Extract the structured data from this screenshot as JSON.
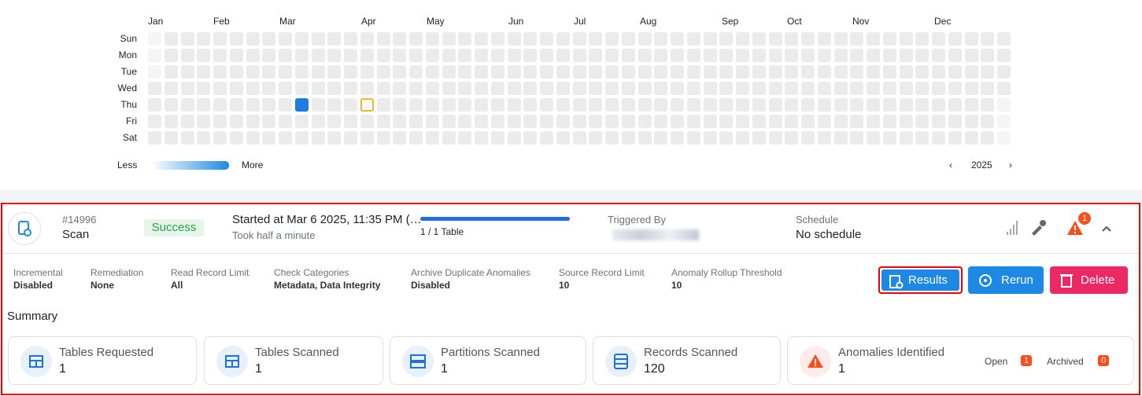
{
  "calendar": {
    "months": [
      "Jan",
      "Feb",
      "Mar",
      "Apr",
      "May",
      "Jun",
      "Jul",
      "Aug",
      "Sep",
      "Oct",
      "Nov",
      "Dec"
    ],
    "days": [
      "Sun",
      "Mon",
      "Tue",
      "Wed",
      "Thu",
      "Fri",
      "Sat"
    ],
    "legend": {
      "less": "Less",
      "more": "More"
    },
    "year": "2025"
  },
  "scan": {
    "id": "#14996",
    "type": "Scan",
    "status": "Success",
    "started": "Started at Mar 6 2025, 11:35 PM (…",
    "duration": "Took half a minute",
    "progress": "1 / 1 Table",
    "triggered_by_label": "Triggered By",
    "schedule_label": "Schedule",
    "schedule": "No schedule",
    "alerts": 1
  },
  "params": [
    {
      "label": "Incremental",
      "value": "Disabled"
    },
    {
      "label": "Remediation",
      "value": "None"
    },
    {
      "label": "Read Record Limit",
      "value": "All"
    },
    {
      "label": "Check Categories",
      "value": "Metadata, Data Integrity"
    },
    {
      "label": "Archive Duplicate Anomalies",
      "value": "Disabled"
    },
    {
      "label": "Source Record Limit",
      "value": 10
    },
    {
      "label": "Anomaly Rollup Threshold",
      "value": 10
    }
  ],
  "buttons": [
    "Results",
    "Rerun",
    "Delete"
  ],
  "summary": {
    "title": "Summary",
    "cards": [
      {
        "label": "Tables Requested",
        "value": 1
      },
      {
        "label": "Tables Scanned",
        "value": 1
      },
      {
        "label": "Partitions Scanned",
        "value": 1
      },
      {
        "label": "Records Scanned",
        "value": 120
      },
      {
        "label": "Anomalies Identified",
        "value": 1
      }
    ],
    "open": {
      "label": "Open",
      "value": 1
    },
    "archived": {
      "label": "Archived",
      "value": 0
    }
  }
}
